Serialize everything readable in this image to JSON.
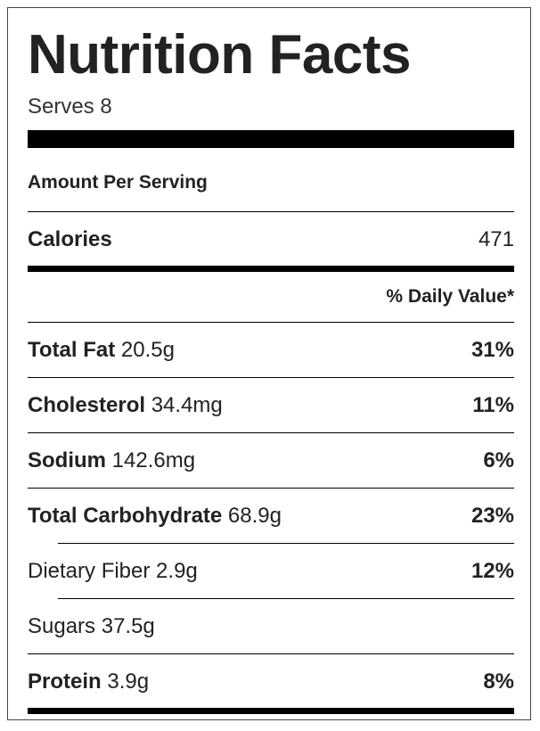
{
  "title": "Nutrition Facts",
  "serves": "Serves 8",
  "amount_per_serving": "Amount Per Serving",
  "calories": {
    "label": "Calories",
    "value": "471"
  },
  "daily_value_header": "% Daily Value*",
  "nutrients": [
    {
      "name": "Total Fat",
      "amount": "20.5g",
      "dv": "31%"
    },
    {
      "name": "Cholesterol",
      "amount": "34.4mg",
      "dv": "11%"
    },
    {
      "name": "Sodium",
      "amount": "142.6mg",
      "dv": "6%"
    },
    {
      "name": "Total Carbohydrate",
      "amount": "68.9g",
      "dv": "23%"
    },
    {
      "name": "Dietary Fiber",
      "amount": "2.9g",
      "dv": "12%"
    },
    {
      "name": "Sugars",
      "amount": "37.5g",
      "dv": ""
    },
    {
      "name": "Protein",
      "amount": "3.9g",
      "dv": "8%"
    }
  ]
}
